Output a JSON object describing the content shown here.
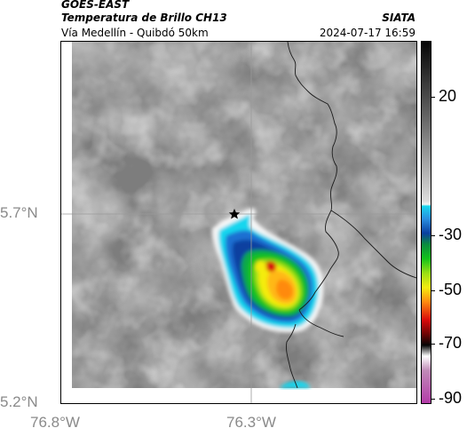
{
  "header": {
    "satellite": "GOES-EAST",
    "product": "Temperatura de Brillo CH13",
    "route": "Vía Medellín - Quibdó 50km",
    "org": "SIATA",
    "datetime": "2024-07-17 16:59"
  },
  "axes": {
    "y_ticks": [
      {
        "label": "5.7°N",
        "value": 5.7
      },
      {
        "label": "5.2°N",
        "value": 5.2
      }
    ],
    "x_ticks": [
      {
        "label": "76.8°W",
        "value": -76.8
      },
      {
        "label": "76.3°W",
        "value": -76.3
      }
    ]
  },
  "colorbar": {
    "ticks": [
      {
        "label": "20",
        "value": 20
      },
      {
        "label": "-30",
        "value": -30
      },
      {
        "label": "-50",
        "value": -50
      },
      {
        "label": "-70",
        "value": -70
      },
      {
        "label": "-90",
        "value": -90
      }
    ],
    "colors": {
      "cold_top": "#ffffff",
      "cyan": "#19d6ee",
      "blue": "#0a3fa0",
      "green": "#12c21a",
      "yellow": "#f4ec10",
      "orange": "#ff8a10",
      "red": "#d80a0a",
      "black": "#050505",
      "magenta": "#b43ca8"
    }
  },
  "map": {
    "marker": "star-icon"
  }
}
